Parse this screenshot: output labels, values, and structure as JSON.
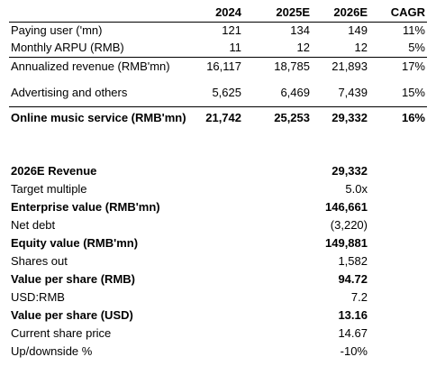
{
  "top_table": {
    "headers": [
      "",
      "2024",
      "2025E",
      "2026E",
      "CAGR"
    ],
    "rows": [
      {
        "label": "Paying user ('mn)",
        "v2024": "121",
        "v2025": "134",
        "v2026": "149",
        "cagr": "11%"
      },
      {
        "label": "Monthly ARPU (RMB)",
        "v2024": "11",
        "v2025": "12",
        "v2026": "12",
        "cagr": "5%"
      },
      {
        "label": "Annualized revenue (RMB'mn)",
        "v2024": "16,117",
        "v2025": "18,785",
        "v2026": "21,893",
        "cagr": "17%"
      },
      {
        "label": "Advertising and others",
        "v2024": "5,625",
        "v2025": "6,469",
        "v2026": "7,439",
        "cagr": "15%"
      },
      {
        "label": "Online music service (RMB'mn)",
        "v2024": "21,742",
        "v2025": "25,253",
        "v2026": "29,332",
        "cagr": "16%"
      }
    ]
  },
  "valuation": {
    "rows": [
      {
        "label": "2026E Revenue",
        "value": "29,332"
      },
      {
        "label": "Target multiple",
        "value": "5.0x"
      },
      {
        "label": "Enterprise value (RMB'mn)",
        "value": "146,661"
      },
      {
        "label": "Net debt",
        "value": "(3,220)"
      },
      {
        "label": "Equity value (RMB'mn)",
        "value": "149,881"
      },
      {
        "label": "Shares out",
        "value": "1,582"
      },
      {
        "label": "Value per share (RMB)",
        "value": "94.72"
      },
      {
        "label": "USD:RMB",
        "value": "7.2"
      },
      {
        "label": "Value per share (USD)",
        "value": "13.16"
      },
      {
        "label": "Current share price",
        "value": "14.67"
      },
      {
        "label": "Up/downside %",
        "value": "-10%"
      }
    ]
  }
}
